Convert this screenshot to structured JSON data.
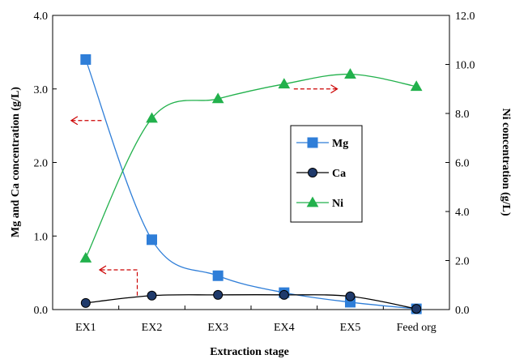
{
  "chart_data": {
    "type": "line",
    "xlabel": "Extraction  stage",
    "ylabel_left": "Mg  and  Ca  concentration  (g/L)",
    "ylabel_right": "Ni  concentration  (g/L)",
    "categories": [
      "EX1",
      "EX2",
      "EX3",
      "EX4",
      "EX5",
      "Feed org"
    ],
    "ylim_left": [
      0,
      4
    ],
    "yticks_left": [
      "0.0",
      "1.0",
      "2.0",
      "3.0",
      "4.0"
    ],
    "ylim_right": [
      0,
      12
    ],
    "yticks_right": [
      "0.0",
      "2.0",
      "4.0",
      "6.0",
      "8.0",
      "10.0",
      "12.0"
    ],
    "grid": false,
    "legend_position": "center-right",
    "series": [
      {
        "name": "Mg",
        "axis": "left",
        "marker": "square",
        "color": "#2f7ed8",
        "values": [
          3.4,
          0.95,
          0.46,
          0.23,
          0.1,
          0.01
        ]
      },
      {
        "name": "Ca",
        "axis": "left",
        "marker": "circle",
        "color": "#000000",
        "marker_fill": "#1f3a6b",
        "values": [
          0.09,
          0.19,
          0.2,
          0.2,
          0.18,
          0.01
        ]
      },
      {
        "name": "Ni",
        "axis": "right",
        "marker": "triangle",
        "color": "#22b14c",
        "values": [
          2.1,
          7.8,
          8.6,
          9.2,
          9.6,
          9.1
        ]
      }
    ],
    "annotations": [
      {
        "type": "dashed-arrow",
        "color": "#cc0000",
        "direction": "left",
        "target": "left-axis",
        "near": "Ni EX1-EX2"
      },
      {
        "type": "dashed-arrow",
        "color": "#cc0000",
        "direction": "left",
        "target": "left-axis",
        "near": "Ca EX2"
      },
      {
        "type": "dashed-arrow",
        "color": "#cc0000",
        "direction": "right",
        "target": "right-axis",
        "near": "Ni EX4-EX5"
      }
    ]
  }
}
